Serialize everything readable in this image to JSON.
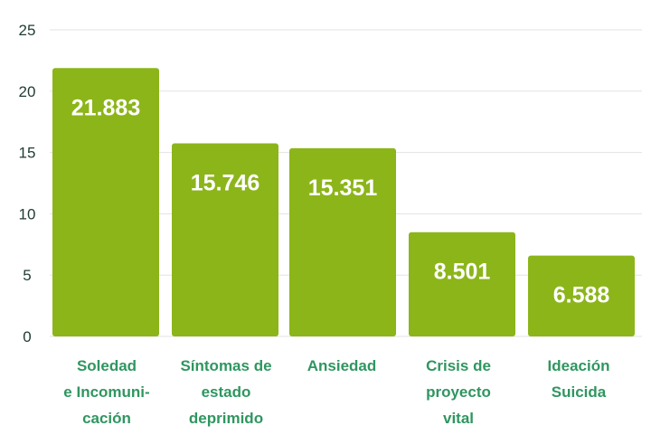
{
  "chart_data": {
    "type": "bar",
    "categories": [
      [
        "Soledad",
        "e Incomuni-",
        "cación"
      ],
      [
        "Síntomas de",
        "estado",
        "deprimido"
      ],
      [
        "Ansiedad"
      ],
      [
        "Crisis de",
        "proyecto",
        "vital"
      ],
      [
        "Ideación",
        "Suicida"
      ]
    ],
    "values": [
      21.883,
      15.746,
      15.351,
      8.501,
      6.588
    ],
    "value_labels": [
      "21.883",
      "15.746",
      "15.351",
      "8.501",
      "6.588"
    ],
    "y_ticks": [
      "0",
      "5",
      "10",
      "15",
      "20",
      "25"
    ],
    "ylim": [
      0,
      25
    ],
    "grid": true,
    "title": "",
    "xlabel": "",
    "ylabel": "",
    "colors": {
      "bar": "#8cb51a",
      "category_text": "#2f9660",
      "tick_text": "#1f3b33",
      "grid": "#e3e3e3"
    }
  }
}
